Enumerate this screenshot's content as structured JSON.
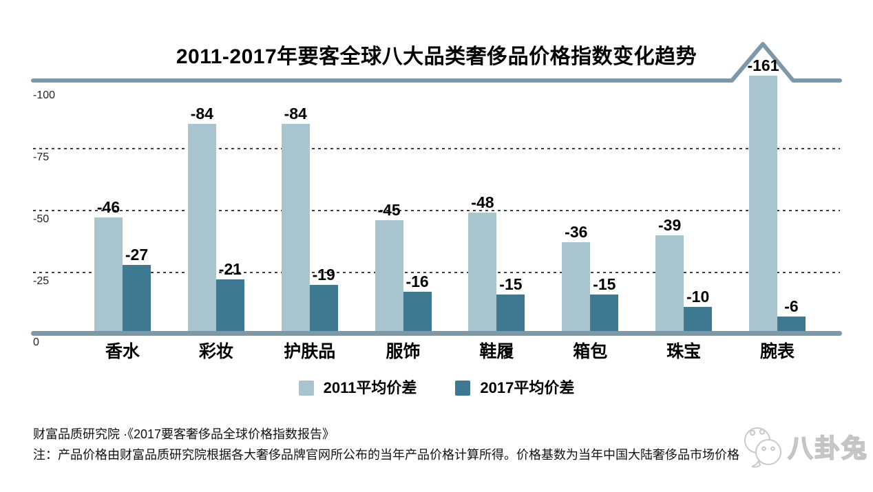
{
  "title": "2011-2017年要客全球八大品类奢侈品价格指数变化趋势",
  "chart_data": {
    "type": "bar",
    "title": "2011-2017年要客全球八大品类奢侈品价格指数变化趋势",
    "categories": [
      "香水",
      "彩妆",
      "护肤品",
      "服饰",
      "鞋履",
      "箱包",
      "珠宝",
      "腕表"
    ],
    "series": [
      {
        "name": "2011平均价差",
        "color": "#a8c4ce",
        "values": [
          -46,
          -84,
          -84,
          -45,
          -48,
          -36,
          -39,
          -161
        ]
      },
      {
        "name": "2017平均价差",
        "color": "#3d7a92",
        "values": [
          -27,
          -21,
          -19,
          -16,
          -15,
          -15,
          -10,
          -6
        ]
      }
    ],
    "y_axis": {
      "tick_labels": [
        "-100",
        "-75",
        "-50",
        "-25",
        "0"
      ],
      "range_shown": [
        0,
        -100
      ],
      "orientation": "inverted: 0 at bottom, larger negative magnitudes upward"
    },
    "grid": "horizontal dotted lines at -25, -50, -75; solid accent line at -100",
    "legend_position": "bottom-center",
    "overflow_marker": "腕表 2011 bar (-161) is clipped at the -100 line; the top accent line rises in a triangular peak above it"
  },
  "footer": {
    "source": "财富品质研究院 ·《2017要客奢侈品全球价格指数报告》",
    "note": "注：产品价格由财富品质研究院根据各大奢侈品牌官网所公布的当年产品价格计算所得。价格基数为当年中国大陆奢侈品市场价格"
  },
  "watermark": {
    "label": "八卦兔",
    "icon": "rabbit-icon"
  },
  "colors": {
    "bar_2011": "#a8c4ce",
    "bar_2017": "#3d7a92",
    "axis_line": "#7d99a9",
    "gridline": "#3d3d3d",
    "text": "#000000",
    "background": "#ffffff"
  }
}
